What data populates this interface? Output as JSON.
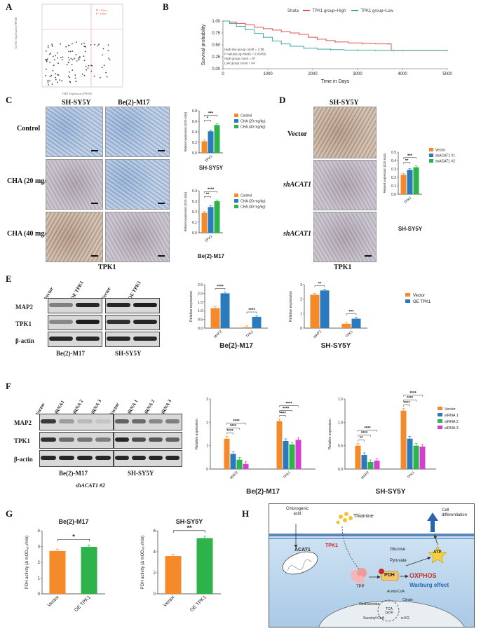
{
  "panels": {
    "A": {
      "letter": "A",
      "xlabel": "TPK1 Expression (FPKM)",
      "ylabel": "ACAT1 Expression (FPKM)",
      "annotation": "R = 0.xxx\nP < 0.001",
      "chart_data": {
        "type": "scatter",
        "xlabel": "TPK1 Expression (FPKM)",
        "ylabel": "ACAT1 Expression (FPKM)",
        "x": [],
        "y": []
      }
    },
    "B": {
      "letter": "B",
      "legend_title": "Strata",
      "legend_high": "TPK1 group=High",
      "legend_low": "TPK1 group=Low",
      "ylabel": "Survival probability",
      "xlabel": "Time in Days",
      "stats": [
        "High-low group cutoff = 2.38",
        "P-value(Log-Rank) = 0.03455",
        "High group count = 87",
        "Low group count = 64"
      ],
      "chart_data": {
        "type": "line",
        "xlabel": "Time in Days",
        "ylabel": "Survival probability",
        "xlim": [
          0,
          5000
        ],
        "ylim": [
          0,
          1.0
        ],
        "xticks": [
          0,
          1000,
          2000,
          3000,
          4000,
          5000
        ],
        "yticks": [
          0.0,
          0.25,
          0.5,
          0.75,
          1.0
        ],
        "series": [
          {
            "name": "TPK1 group=High",
            "color": "#e05252",
            "x": [
              0,
              150,
              300,
              500,
              700,
              900,
              1100,
              1300,
              1500,
              1700,
              1900,
              2100,
              2300,
              2500,
              2800,
              3100,
              3400,
              3700,
              3750,
              4000,
              5000
            ],
            "y": [
              1.0,
              0.98,
              0.95,
              0.92,
              0.87,
              0.84,
              0.81,
              0.78,
              0.75,
              0.72,
              0.66,
              0.62,
              0.59,
              0.56,
              0.54,
              0.53,
              0.52,
              0.52,
              0.38,
              0.38,
              0.38
            ]
          },
          {
            "name": "TPK1 group=Low",
            "color": "#3aa8a0",
            "x": [
              0,
              150,
              300,
              500,
              700,
              900,
              1100,
              1300,
              1500,
              1800,
              2100,
              2400,
              2700,
              3000,
              3400,
              3800,
              4200,
              5000
            ],
            "y": [
              1.0,
              0.95,
              0.89,
              0.82,
              0.74,
              0.66,
              0.58,
              0.52,
              0.47,
              0.43,
              0.41,
              0.4,
              0.39,
              0.39,
              0.38,
              0.38,
              0.38,
              0.38
            ]
          }
        ]
      }
    },
    "C": {
      "letter": "C",
      "col1": "SH-SY5Y",
      "col2": "Be(2)-M17",
      "rows": [
        "Control",
        "CHA (20 mg/kg)",
        "CHA (40 mg/kg)"
      ],
      "footer": "TPK1",
      "legend": [
        "Control",
        "CHA (20 mg/kg)",
        "CHA (40 mg/kg)"
      ],
      "colors": [
        "#f58a2a",
        "#2a7bbd",
        "#2db34a"
      ],
      "chart1": {
        "title": "SH-SY5Y",
        "ylabel": "Related expression (IOD ratio)",
        "category": "TPK1",
        "chart_data": {
          "type": "bar",
          "categories": [
            "TPK1"
          ],
          "ylim": [
            0,
            0.8
          ],
          "yticks": [
            0.0,
            0.2,
            0.4,
            0.6,
            0.8
          ],
          "series": [
            {
              "name": "Control",
              "values": [
                0.22
              ]
            },
            {
              "name": "CHA (20 mg/kg)",
              "values": [
                0.41
              ]
            },
            {
              "name": "CHA (40 mg/kg)",
              "values": [
                0.53
              ]
            }
          ],
          "significance": [
            "*",
            "***"
          ]
        }
      },
      "chart2": {
        "title": "Be(2)-M17",
        "ylabel": "Related expression (IOD ratio)",
        "category": "TPK1",
        "chart_data": {
          "type": "bar",
          "categories": [
            "TPK1"
          ],
          "ylim": [
            0,
            0.4
          ],
          "yticks": [
            0.0,
            0.1,
            0.2,
            0.3,
            0.4
          ],
          "series": [
            {
              "name": "Control",
              "values": [
                0.19
              ]
            },
            {
              "name": "CHA (20 mg/kg)",
              "values": [
                0.245
              ]
            },
            {
              "name": "CHA (40 mg/kg)",
              "values": [
                0.3
              ]
            }
          ],
          "significance": [
            "**",
            "****"
          ]
        }
      }
    },
    "D": {
      "letter": "D",
      "col": "SH-SY5Y",
      "rows": [
        "Vector",
        "shACAT1 #1",
        "shACAT1 #2"
      ],
      "footer": "TPK1",
      "legend": [
        "Vector",
        "shACAT1 #1",
        "shACAT1 #2"
      ],
      "colors": [
        "#f58a2a",
        "#2a7bbd",
        "#2db34a"
      ],
      "chart": {
        "title": "SH-SY5Y",
        "ylabel": "Related expression (IOD ratio)",
        "category": "TPK1",
        "chart_data": {
          "type": "bar",
          "categories": [
            "TPK1"
          ],
          "ylim": [
            0,
            0.5
          ],
          "yticks": [
            0.0,
            0.1,
            0.2,
            0.3,
            0.4,
            0.5
          ],
          "series": [
            {
              "name": "Vector",
              "values": [
                0.23
              ]
            },
            {
              "name": "shACAT1 #1",
              "values": [
                0.29
              ]
            },
            {
              "name": "shACAT1 #2",
              "values": [
                0.32
              ]
            }
          ],
          "significance": [
            "**",
            "***"
          ]
        }
      }
    },
    "E": {
      "letter": "E",
      "blot_cols1": [
        "Vector",
        "OE TPK1"
      ],
      "blot_cols2": [
        "Vector",
        "OE TPK1"
      ],
      "rows": [
        "MAP2",
        "TPK1",
        "β-actin"
      ],
      "cell1": "Be(2)-M17",
      "cell2": "SH-SY5Y",
      "legend": [
        "Vector",
        "OE TPK1"
      ],
      "colors": [
        "#f58a2a",
        "#2a7bbd"
      ],
      "chart1": {
        "title": "Be(2)-M17",
        "ylabel": "Relative expression",
        "chart_data": {
          "type": "bar",
          "categories": [
            "MAP2",
            "TPK1"
          ],
          "ylim": [
            0,
            2.5
          ],
          "yticks": [
            0.0,
            0.5,
            1.0,
            1.5,
            2.0,
            2.5
          ],
          "series": [
            {
              "name": "Vector",
              "values": [
                1.15,
                0.05
              ]
            },
            {
              "name": "OE TPK1",
              "values": [
                2.0,
                0.65
              ]
            }
          ],
          "significance": [
            "****",
            "****"
          ]
        }
      },
      "chart2": {
        "title": "SH-SY5Y",
        "ylabel": "Relative expression",
        "chart_data": {
          "type": "bar",
          "categories": [
            "MAP2",
            "TPK1"
          ],
          "ylim": [
            0,
            3
          ],
          "yticks": [
            0,
            1,
            2,
            3
          ],
          "series": [
            {
              "name": "Vector",
              "values": [
                2.3,
                0.3
              ]
            },
            {
              "name": "OE TPK1",
              "values": [
                2.6,
                0.65
              ]
            }
          ],
          "significance": [
            "**",
            "***"
          ]
        }
      }
    },
    "F": {
      "letter": "F",
      "blot_cols1": [
        "Vector",
        "siRNA1",
        "siRNA 2",
        "siRNA 3"
      ],
      "blot_cols2": [
        "Vector",
        "siRNA 1",
        "siRNA 2",
        "siRNA 3"
      ],
      "rows": [
        "MAP2",
        "TPK1",
        "β-actin"
      ],
      "cell1": "Be(2)-M17",
      "cell2": "SH-SY5Y",
      "sublabel": "shACAT1 #2",
      "legend": [
        "Vector",
        "siRNA 1",
        "siRNA 2",
        "siRNA 3"
      ],
      "colors": [
        "#f58a2a",
        "#2a7bbd",
        "#2db34a",
        "#d43fd0"
      ],
      "chart1": {
        "title": "Be(2)-M17",
        "ylabel": "Relative expression",
        "chart_data": {
          "type": "bar",
          "categories": [
            "MAP2",
            "TPK1"
          ],
          "ylim": [
            0,
            3
          ],
          "yticks": [
            0,
            1,
            2,
            3
          ],
          "series": [
            {
              "name": "Vector",
              "values": [
                1.3,
                2.05
              ]
            },
            {
              "name": "siRNA 1",
              "values": [
                0.65,
                1.2
              ]
            },
            {
              "name": "siRNA 2",
              "values": [
                0.4,
                1.05
              ]
            },
            {
              "name": "siRNA 3",
              "values": [
                0.22,
                1.25
              ]
            }
          ],
          "significance": [
            "****",
            "****",
            "****",
            "****",
            "****",
            "****"
          ]
        }
      },
      "chart2": {
        "title": "SH-SY5Y",
        "ylabel": "Relative expression",
        "chart_data": {
          "type": "bar",
          "categories": [
            "MAP2",
            "TPK1"
          ],
          "ylim": [
            0,
            1.5
          ],
          "yticks": [
            0.0,
            0.5,
            1.0,
            1.5
          ],
          "series": [
            {
              "name": "Vector",
              "values": [
                0.5,
                1.25
              ]
            },
            {
              "name": "siRNA 1",
              "values": [
                0.3,
                0.65
              ]
            },
            {
              "name": "siRNA 2",
              "values": [
                0.15,
                0.5
              ]
            },
            {
              "name": "siRNA 3",
              "values": [
                0.18,
                0.48
              ]
            }
          ],
          "significance": [
            "**",
            "****",
            "****",
            "****",
            "****",
            "****"
          ]
        }
      }
    },
    "G": {
      "letter": "G",
      "colors": [
        "#f58a2a",
        "#2db34a"
      ],
      "chart1": {
        "title": "Be(2)-M17",
        "ylabel": "PDH activity (Δ mOD₄₅₀/min)",
        "chart_data": {
          "type": "bar",
          "categories": [
            "Vector",
            "OE TPK1"
          ],
          "ylim": [
            0,
            4
          ],
          "yticks": [
            0,
            1,
            2,
            3,
            4
          ],
          "values": [
            2.72,
            2.98
          ],
          "significance": "*"
        }
      },
      "chart2": {
        "title": "SH-SY5Y",
        "ylabel": "PDH activity (Δ mOD₄₅₀/min)",
        "chart_data": {
          "type": "bar",
          "categories": [
            "Vector",
            "OE TPK1"
          ],
          "ylim": [
            0,
            6
          ],
          "yticks": [
            0,
            2,
            4,
            6
          ],
          "values": [
            3.6,
            5.3
          ],
          "significance": "**"
        }
      }
    },
    "H": {
      "letter": "H",
      "labels": {
        "chlorogenic": "Chlorogenic acid",
        "thiamine": "Thiamine",
        "cell_diff": "Cell differentiation",
        "acat1": "ACAT1",
        "tpk1": "TPK1",
        "glucose": "Glucose",
        "pyruvate": "Pyruvate",
        "atp": "ATP",
        "tpp": "TPP",
        "pdh": "PDH",
        "oxphos": "OXPHOS",
        "warburg": "Warburg effect",
        "acetylcoa": "Acetyl-CoA",
        "citrate": "Citrate",
        "oxaloacetate": "Oxaloacetate",
        "tca": "TCA cycle",
        "akg": "α-KG",
        "succinyl": "Succinyl-CoA"
      }
    }
  }
}
